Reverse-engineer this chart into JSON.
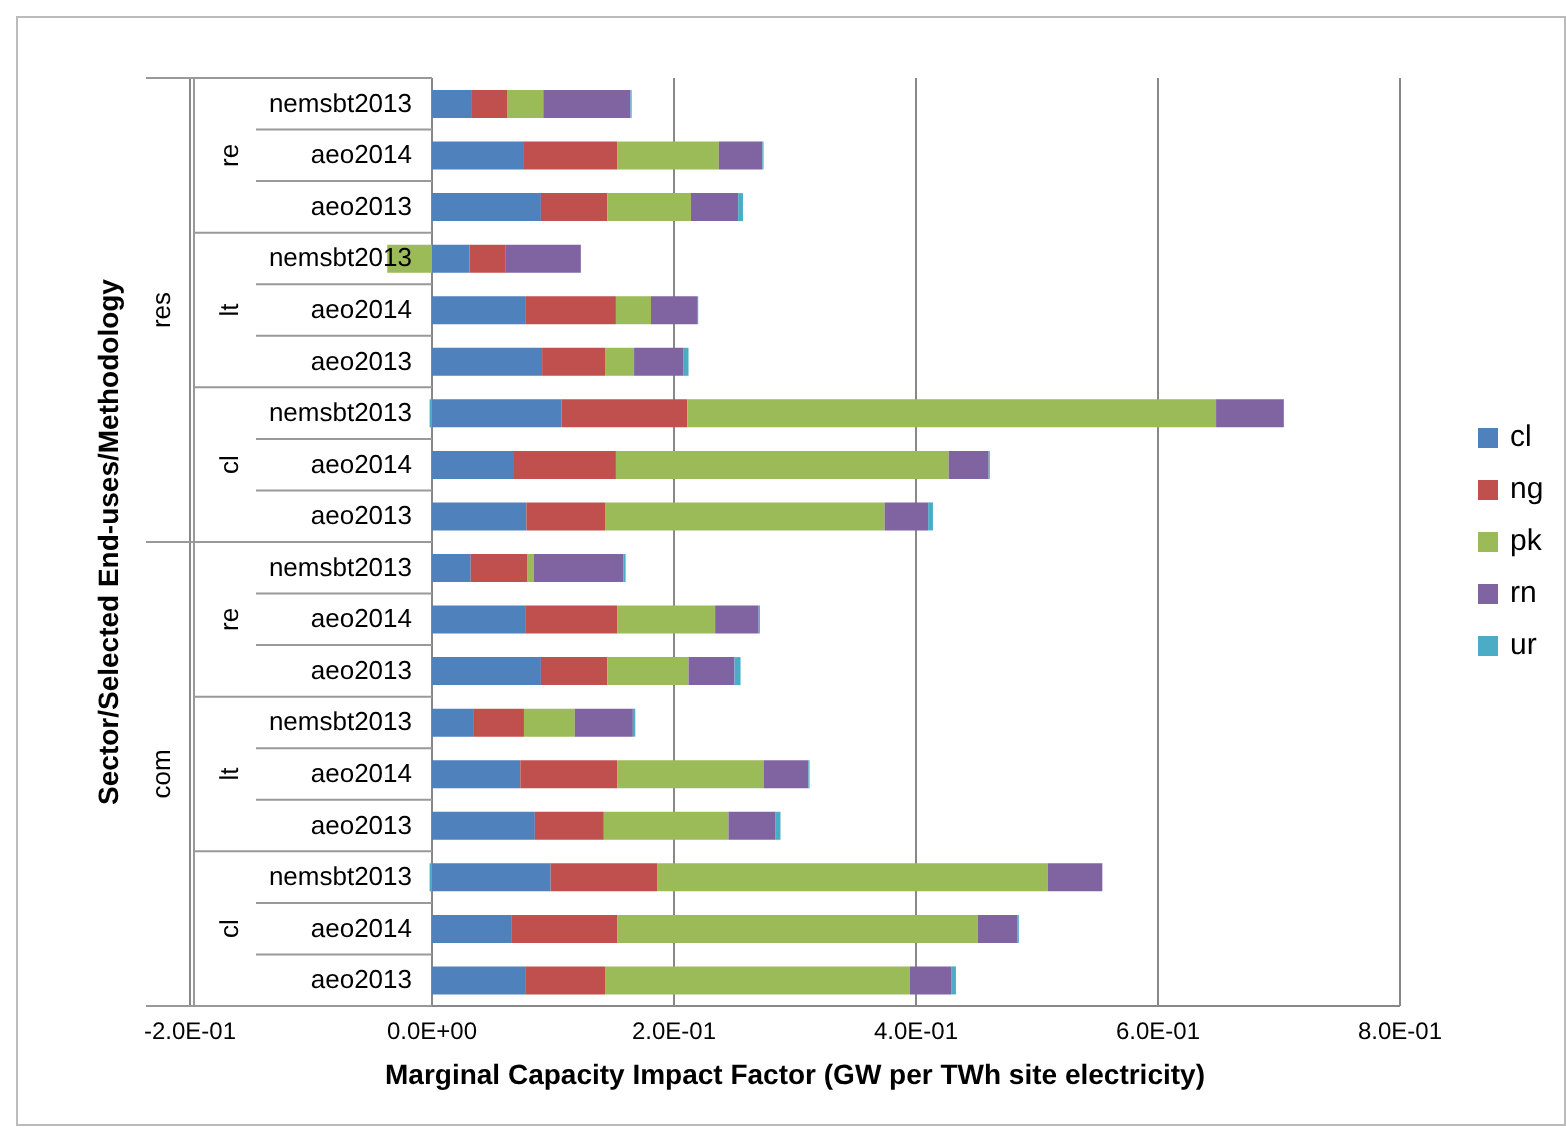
{
  "chart_data": {
    "type": "bar",
    "orientation": "horizontal",
    "stacked": true,
    "xlabel": "Marginal Capacity Impact Factor (GW per TWh site electricity)",
    "ylabel": "Sector/Selected End-uses/Methodology",
    "annotations": [
      "res",
      "re",
      "lt",
      "cl",
      "com",
      "re",
      "lt",
      "cl"
    ],
    "categories": [
      "nemsbt2013",
      "aeo2014",
      "aeo2013",
      "nemsbt2013",
      "aeo2014",
      "aeo2013",
      "nemsbt2013",
      "aeo2014",
      "aeo2013",
      "nemsbt2013",
      "aeo2014",
      "aeo2013",
      "nemsbt2013",
      "aeo2014",
      "aeo2013",
      "nemsbt2013",
      "aeo2014",
      "aeo2013"
    ],
    "series": [
      {
        "name": "cl",
        "color": "#4f81bd",
        "values": [
          0.033,
          0.076,
          0.09,
          0.031,
          0.077,
          0.091,
          0.107,
          0.067,
          0.078,
          0.032,
          0.077,
          0.09,
          0.034,
          0.073,
          0.085,
          0.098,
          0.066,
          0.077
        ]
      },
      {
        "name": "ng",
        "color": "#c0504d",
        "values": [
          0.029,
          0.077,
          0.055,
          0.03,
          0.075,
          0.052,
          0.104,
          0.085,
          0.065,
          0.047,
          0.076,
          0.055,
          0.042,
          0.08,
          0.057,
          0.088,
          0.087,
          0.066
        ]
      },
      {
        "name": "pk",
        "color": "#9bbb59",
        "values": [
          0.03,
          0.084,
          0.069,
          -0.037,
          0.029,
          0.024,
          0.437,
          0.275,
          0.231,
          0.005,
          0.081,
          0.067,
          0.042,
          0.121,
          0.103,
          0.323,
          0.298,
          0.252
        ]
      },
      {
        "name": "rn",
        "color": "#8064a2",
        "values": [
          0.072,
          0.036,
          0.039,
          0.062,
          0.038,
          0.041,
          0.056,
          0.033,
          0.036,
          0.074,
          0.036,
          0.038,
          0.048,
          0.037,
          0.039,
          0.045,
          0.033,
          0.034
        ]
      },
      {
        "name": "ur",
        "color": "#4bacc6",
        "values": [
          0.001,
          0.001,
          0.004,
          0,
          0.001,
          0.004,
          -0.002,
          0.001,
          0.004,
          0.002,
          0.001,
          0.005,
          0.002,
          0.001,
          0.004,
          -0.002,
          0.001,
          0.004
        ]
      }
    ],
    "xlim": [
      -0.2,
      0.8
    ],
    "xticks": [
      {
        "value": -0.2,
        "label": "-2.0E-01"
      },
      {
        "value": 0,
        "label": "0.0E+00"
      },
      {
        "value": 0.2,
        "label": "2.0E-01"
      },
      {
        "value": 0.4,
        "label": "4.0E-01"
      },
      {
        "value": 0.6,
        "label": "6.0E-01"
      },
      {
        "value": 0.8,
        "label": "8.0E-01"
      }
    ],
    "grid": "x",
    "legend": "right"
  }
}
